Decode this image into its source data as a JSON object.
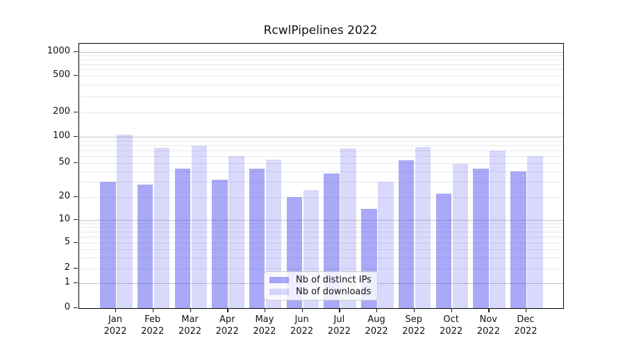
{
  "title": "RcwlPipelines 2022",
  "colors": {
    "ips_bar": "rgba(65,65,240,0.45)",
    "downloads_bar": "rgba(65,65,240,0.20)",
    "grid_decade": "#c3c3c6",
    "grid_minor": "#e9e9ec",
    "spine": "#000000"
  },
  "legend": {
    "items": [
      {
        "label": "Nb of distinct IPs",
        "series": "ips"
      },
      {
        "label": "Nb of downloads",
        "series": "downloads"
      }
    ]
  },
  "chart_data": {
    "type": "bar",
    "title": "RcwlPipelines 2022",
    "categories": [
      "Jan 2022",
      "Feb 2022",
      "Mar 2022",
      "Apr 2022",
      "May 2022",
      "Jun 2022",
      "Jul 2022",
      "Aug 2022",
      "Sep 2022",
      "Oct 2022",
      "Nov 2022",
      "Dec 2022"
    ],
    "series": [
      {
        "name": "Nb of distinct IPs",
        "values": [
          30,
          28,
          43,
          32,
          43,
          20,
          38,
          14,
          54,
          22,
          43,
          40
        ]
      },
      {
        "name": "Nb of downloads",
        "values": [
          106,
          74,
          79,
          60,
          55,
          24,
          73,
          30,
          76,
          49,
          69,
          60
        ]
      }
    ],
    "xlabel": "",
    "ylabel": "",
    "yscale": "pseudo-log (asinh-like)",
    "y_ticks": [
      0,
      1,
      2,
      5,
      10,
      20,
      50,
      100,
      200,
      500,
      1000
    ],
    "y_minor_gridlines": [
      2,
      3,
      4,
      5,
      6,
      7,
      8,
      9,
      20,
      30,
      40,
      50,
      60,
      70,
      80,
      90,
      200,
      300,
      400,
      500,
      600,
      700,
      800,
      900
    ],
    "y_decade_gridlines": [
      1,
      10,
      100,
      1000
    ],
    "ylim": [
      0,
      1300
    ],
    "grid": "horizontal",
    "legend_position": "bottom-center-inside"
  }
}
